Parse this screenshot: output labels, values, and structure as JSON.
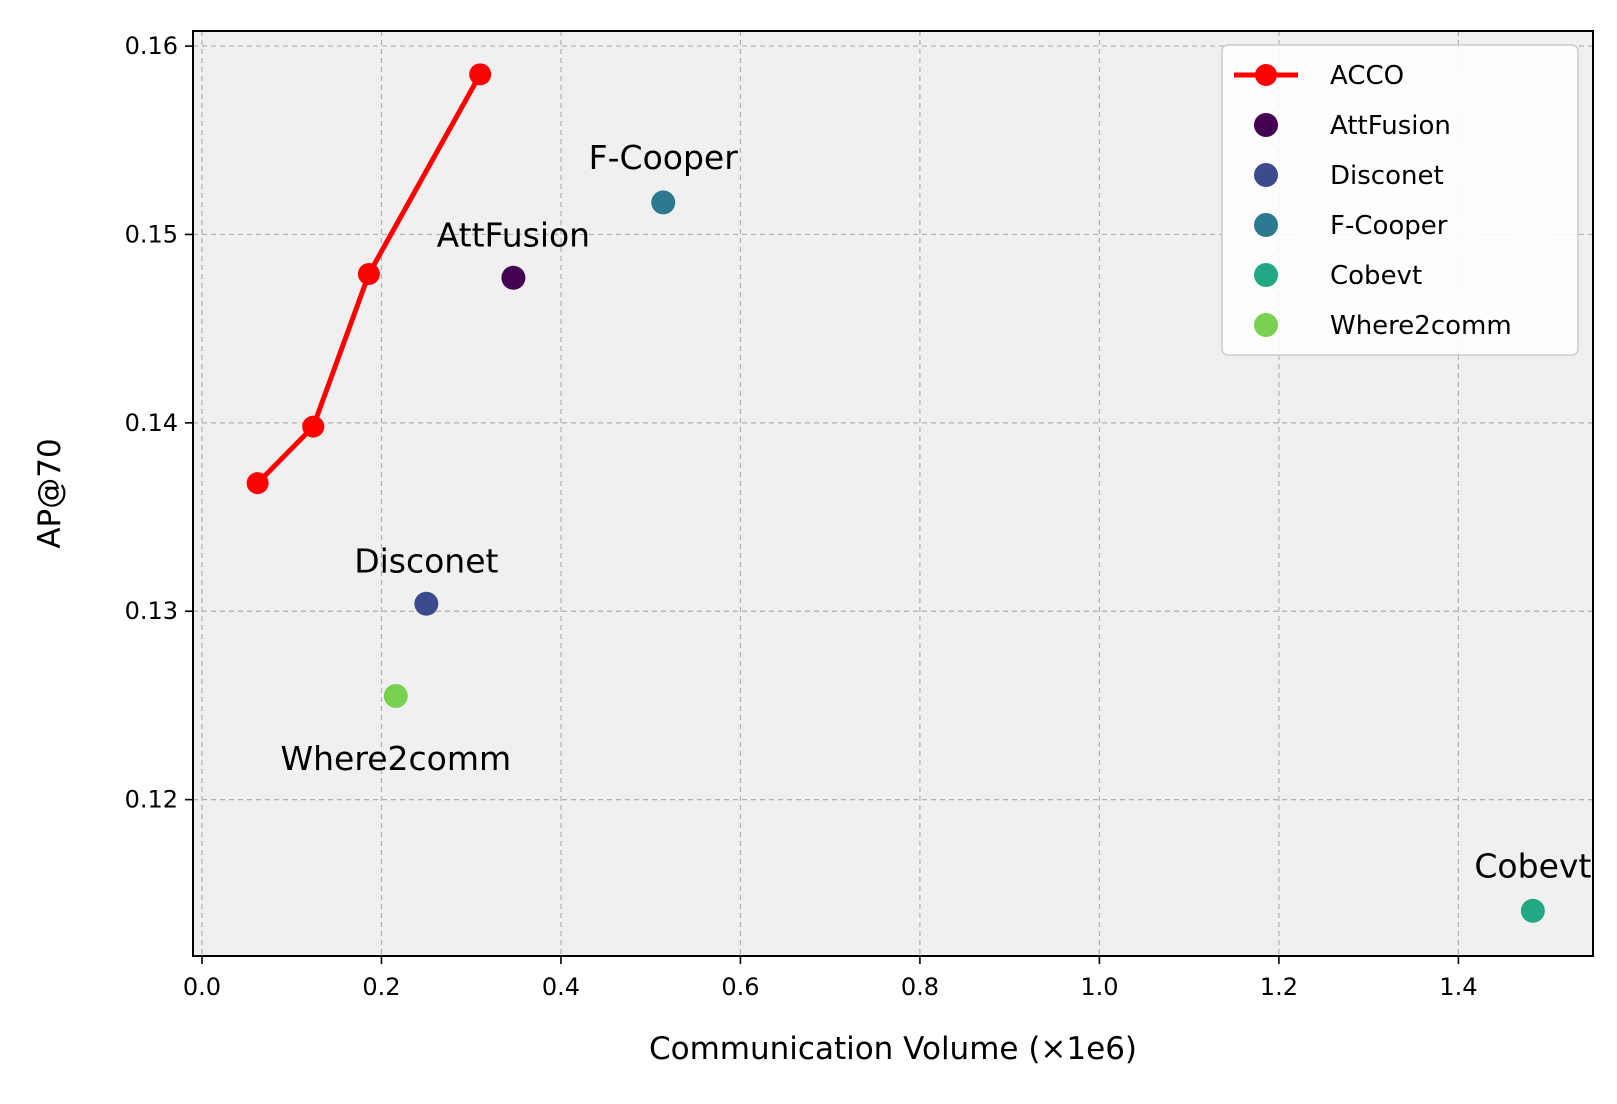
{
  "chart_data": {
    "type": "scatter",
    "xlabel": "Communication Volume (×1e6)",
    "ylabel": "AP@70",
    "xlim": [
      -0.01,
      1.55
    ],
    "ylim": [
      0.1117,
      0.1608
    ],
    "xticks": [
      0.0,
      0.2,
      0.4,
      0.6,
      0.8,
      1.0,
      1.2,
      1.4
    ],
    "xtick_labels": [
      "0.0",
      "0.2",
      "0.4",
      "0.6",
      "0.8",
      "1.0",
      "1.2",
      "1.4"
    ],
    "yticks": [
      0.12,
      0.13,
      0.14,
      0.15,
      0.16
    ],
    "ytick_labels": [
      "0.12",
      "0.13",
      "0.14",
      "0.15",
      "0.16"
    ],
    "grid": true,
    "background_color": "#f0f0f0",
    "legend_position": "top-right",
    "line_series": {
      "name": "ACCO",
      "color": "#ff0000",
      "x": [
        0.062,
        0.124,
        0.186,
        0.31
      ],
      "y": [
        0.1368,
        0.1398,
        0.1479,
        0.1585
      ]
    },
    "points": [
      {
        "name": "AttFusion",
        "x": 0.347,
        "y": 0.1477,
        "color": "#440154",
        "label": "AttFusion",
        "label_x": 0.347,
        "label_y": 0.15
      },
      {
        "name": "Disconet",
        "x": 0.25,
        "y": 0.1304,
        "color": "#3b4b8c",
        "label": "Disconet",
        "label_x": 0.25,
        "label_y": 0.1327
      },
      {
        "name": "F-Cooper",
        "x": 0.514,
        "y": 0.1517,
        "color": "#2b7a8f",
        "label": "F-Cooper",
        "label_x": 0.514,
        "label_y": 0.1541
      },
      {
        "name": "Cobevt",
        "x": 1.483,
        "y": 0.1141,
        "color": "#23a884",
        "label": "Cobevt",
        "label_x": 1.483,
        "label_y": 0.1165
      },
      {
        "name": "Where2comm",
        "x": 0.216,
        "y": 0.1255,
        "color": "#7ad151",
        "label": "Where2comm",
        "label_x": 0.216,
        "label_y": 0.1222
      }
    ],
    "legend": [
      "ACCO",
      "AttFusion",
      "Disconet",
      "F-Cooper",
      "Cobevt",
      "Where2comm"
    ]
  }
}
